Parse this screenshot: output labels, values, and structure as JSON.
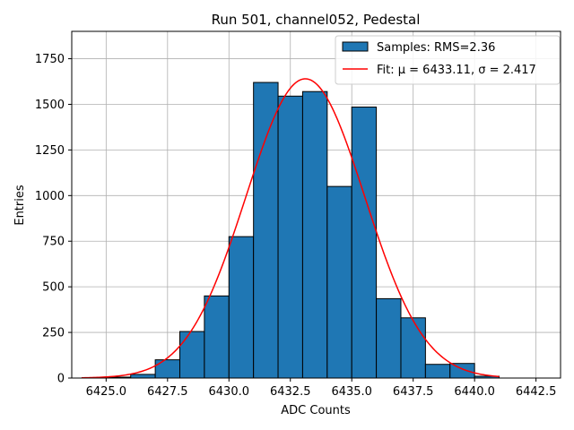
{
  "chart_data": {
    "type": "bar",
    "title": "Run 501, channel052, Pedestal",
    "xlabel": "ADC Counts",
    "ylabel": "Entries",
    "xlim": [
      6423.6,
      6443.5
    ],
    "ylim": [
      0,
      1900
    ],
    "xticks": [
      6425.0,
      6427.5,
      6430.0,
      6432.5,
      6435.0,
      6437.5,
      6440.0,
      6442.5
    ],
    "xtick_labels": [
      "6425.0",
      "6427.5",
      "6430.0",
      "6432.5",
      "6435.0",
      "6437.5",
      "6440.0",
      "6442.5"
    ],
    "yticks": [
      0,
      250,
      500,
      750,
      1000,
      1250,
      1500,
      1750
    ],
    "ytick_labels": [
      "0",
      "250",
      "500",
      "750",
      "1000",
      "1250",
      "1500",
      "1750"
    ],
    "grid": true,
    "legend_position": "top-right",
    "bar_color": "#1f77b4",
    "fit_color": "#ff0000",
    "bins": [
      {
        "x0": 6424.0,
        "x1": 6425.0,
        "value": 0
      },
      {
        "x0": 6425.0,
        "x1": 6426.0,
        "value": 5
      },
      {
        "x0": 6426.0,
        "x1": 6427.0,
        "value": 20
      },
      {
        "x0": 6427.0,
        "x1": 6428.0,
        "value": 100
      },
      {
        "x0": 6428.0,
        "x1": 6429.0,
        "value": 255
      },
      {
        "x0": 6429.0,
        "x1": 6430.0,
        "value": 450
      },
      {
        "x0": 6430.0,
        "x1": 6431.0,
        "value": 775
      },
      {
        "x0": 6431.0,
        "x1": 6432.0,
        "value": 1620
      },
      {
        "x0": 6432.0,
        "x1": 6433.0,
        "value": 1545
      },
      {
        "x0": 6433.0,
        "x1": 6434.0,
        "value": 1570
      },
      {
        "x0": 6434.0,
        "x1": 6435.0,
        "value": 1050
      },
      {
        "x0": 6435.0,
        "x1": 6436.0,
        "value": 1485
      },
      {
        "x0": 6436.0,
        "x1": 6437.0,
        "value": 435
      },
      {
        "x0": 6437.0,
        "x1": 6438.0,
        "value": 330
      },
      {
        "x0": 6438.0,
        "x1": 6439.0,
        "value": 75
      },
      {
        "x0": 6439.0,
        "x1": 6440.0,
        "value": 80
      },
      {
        "x0": 6440.0,
        "x1": 6441.0,
        "value": 10
      }
    ],
    "fit": {
      "mu": 6433.11,
      "sigma": 2.417,
      "amplitude": 1640,
      "x_range": [
        6424.0,
        6441.0
      ]
    },
    "legend": {
      "samples_label": "Samples: RMS=2.36",
      "fit_label": "Fit: μ = 6433.11, σ = 2.417"
    }
  }
}
